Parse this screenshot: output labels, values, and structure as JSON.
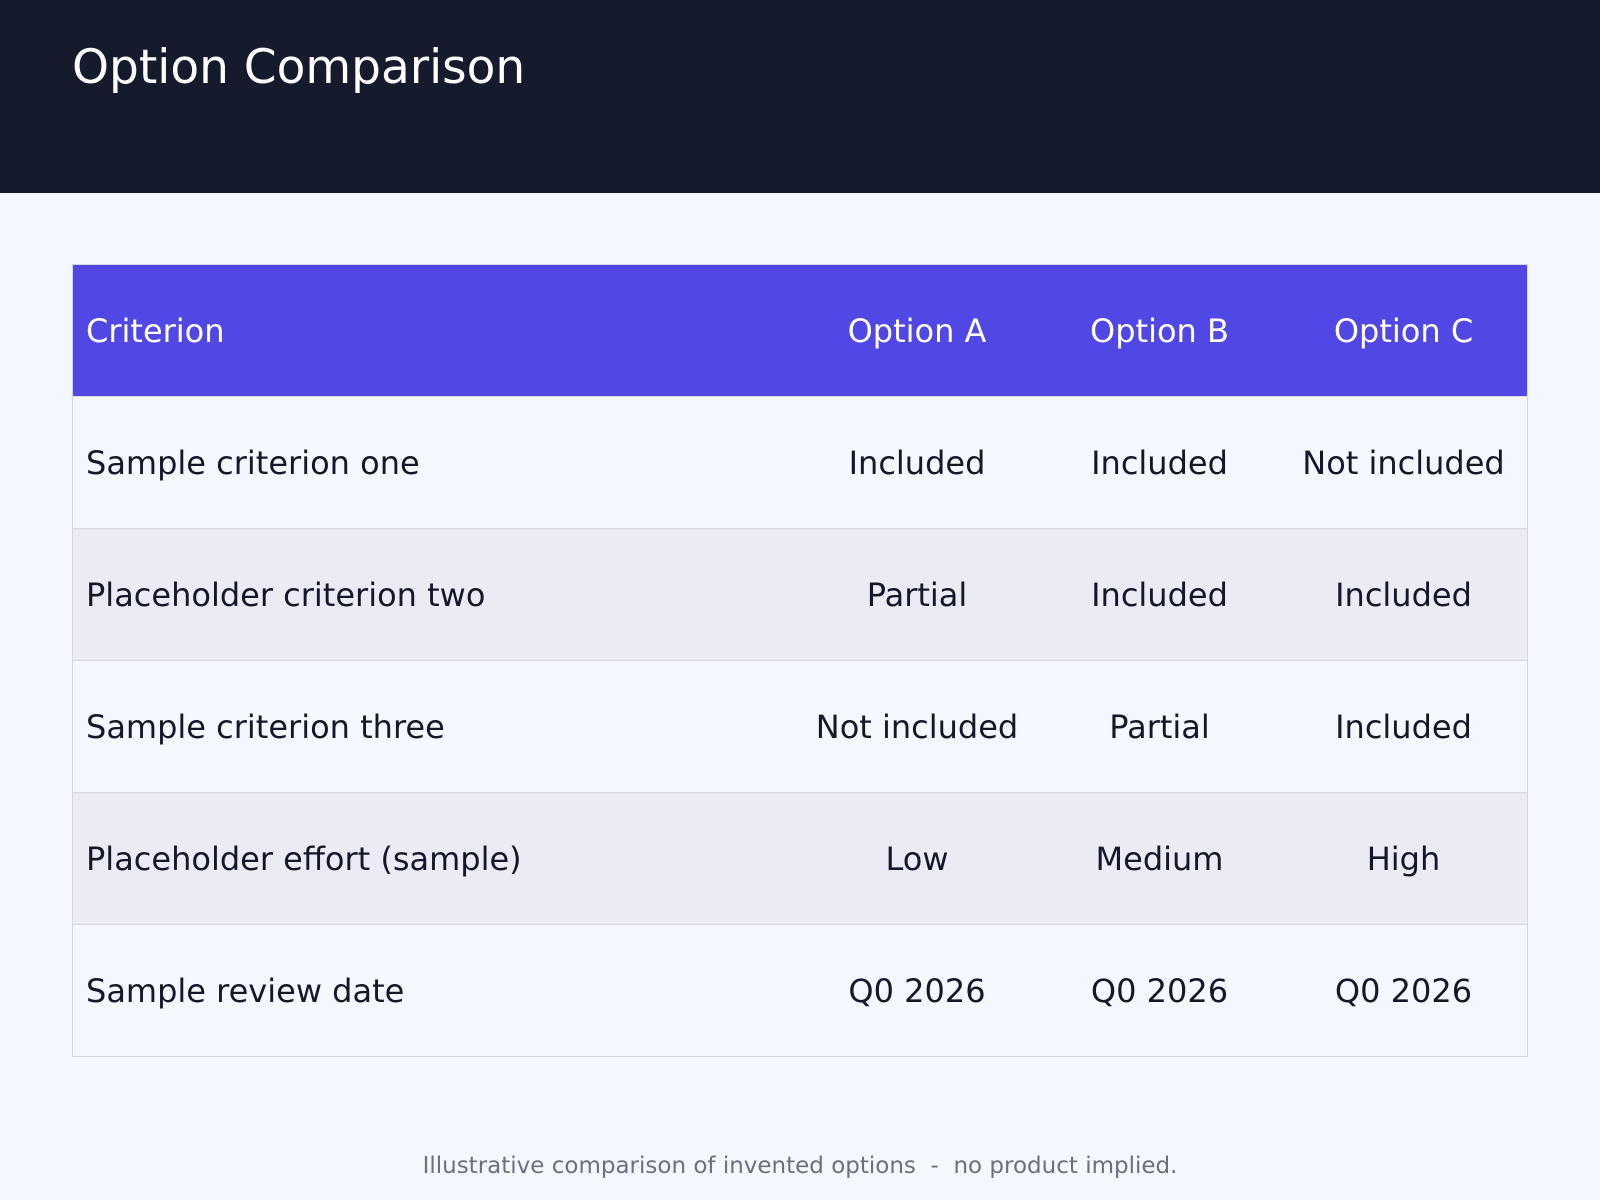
{
  "header": {
    "title": "Option Comparison"
  },
  "table": {
    "columns": [
      "Criterion",
      "Option A",
      "Option B",
      "Option C"
    ],
    "rows": [
      [
        "Sample criterion one",
        "Included",
        "Included",
        "Not included"
      ],
      [
        "Placeholder criterion two",
        "Partial",
        "Included",
        "Included"
      ],
      [
        "Sample criterion three",
        "Not included",
        "Partial",
        "Included"
      ],
      [
        "Placeholder effort (sample)",
        "Low",
        "Medium",
        "High"
      ],
      [
        "Sample review date",
        "Q0 2026",
        "Q0 2026",
        "Q0 2026"
      ]
    ]
  },
  "footer": {
    "note": "Illustrative comparison of invented options  -  no product implied."
  },
  "colors": {
    "header_bg": "#161a2d",
    "accent": "#5047e5",
    "page_bg": "#f4f7fd",
    "alt_row_bg": "#eaebf3"
  }
}
